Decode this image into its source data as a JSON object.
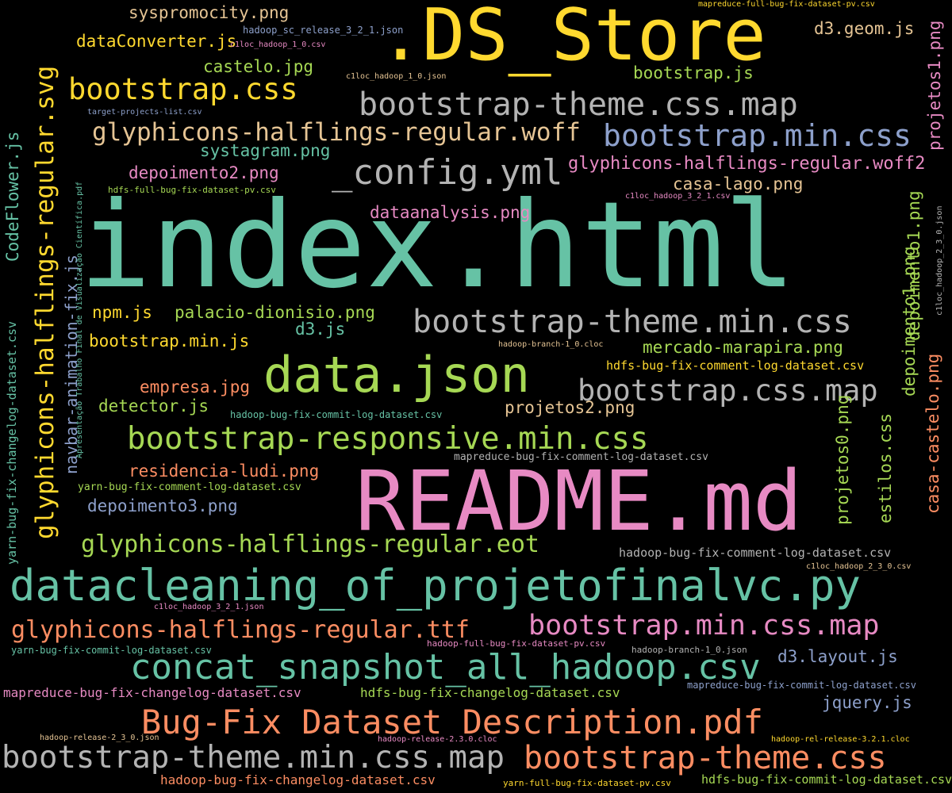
{
  "colors": {
    "background": "#000000",
    "teal": "#66c2a5",
    "orange": "#fc8d62",
    "blue": "#8da0cb",
    "pink": "#e78ac3",
    "lime": "#a6d854",
    "yellow": "#ffd92f",
    "tan": "#e5c494",
    "gray": "#b3b3b3"
  },
  "words": [
    {
      "text": "index.html",
      "color": "#66c2a5"
    },
    {
      "text": "README.md",
      "color": "#e78ac3"
    },
    {
      "text": ".DS_Store",
      "color": "#ffd92f"
    },
    {
      "text": "data.json",
      "color": "#a6d854"
    },
    {
      "text": "datacleaning_of_projetofinalvc.py",
      "color": "#66c2a5"
    },
    {
      "text": "bootstrap-theme.min.css",
      "color": "#b3b3b3"
    },
    {
      "text": "bootstrap-theme.css.map",
      "color": "#b3b3b3"
    },
    {
      "text": "bootstrap.css",
      "color": "#ffd92f"
    },
    {
      "text": "_config.yml",
      "color": "#b3b3b3"
    },
    {
      "text": "bootstrap.min.css",
      "color": "#8da0cb"
    },
    {
      "text": "glyphicons-halflings-regular.woff",
      "color": "#e5c494"
    },
    {
      "text": "bootstrap.css.map",
      "color": "#b3b3b3"
    },
    {
      "text": "bootstrap-responsive.min.css",
      "color": "#a6d854"
    },
    {
      "text": "concat_snapshot_all_hadoop.csv",
      "color": "#66c2a5"
    },
    {
      "text": "Bug-Fix Dataset Description.pdf",
      "color": "#fc8d62"
    },
    {
      "text": "bootstrap-theme.min.css.map",
      "color": "#b3b3b3"
    },
    {
      "text": "bootstrap-theme.css",
      "color": "#fc8d62"
    },
    {
      "text": "bootstrap.min.css.map",
      "color": "#e78ac3"
    },
    {
      "text": "glyphicons-halflings-regular.ttf",
      "color": "#fc8d62"
    },
    {
      "text": "glyphicons-halflings-regular.eot",
      "color": "#a6d854"
    },
    {
      "text": "glyphicons-halflings-regular.woff2",
      "color": "#e78ac3"
    },
    {
      "text": "syspromocity.png",
      "color": "#e5c494"
    },
    {
      "text": "dataConverter.js",
      "color": "#ffd92f"
    },
    {
      "text": "castelo.jpg",
      "color": "#a6d854"
    },
    {
      "text": "systagram.png",
      "color": "#66c2a5"
    },
    {
      "text": "depoimento2.png",
      "color": "#e78ac3"
    },
    {
      "text": "d3.geom.js",
      "color": "#e5c494"
    },
    {
      "text": "bootstrap.js",
      "color": "#a6d854"
    },
    {
      "text": "casa-lago.png",
      "color": "#e5c494"
    },
    {
      "text": "dataanalysis.png",
      "color": "#e78ac3"
    },
    {
      "text": "npm.js",
      "color": "#ffd92f"
    },
    {
      "text": "palacio-dionisio.png",
      "color": "#a6d854"
    },
    {
      "text": "d3.js",
      "color": "#66c2a5"
    },
    {
      "text": "bootstrap.min.js",
      "color": "#ffd92f"
    },
    {
      "text": "mercado-marapira.png",
      "color": "#a6d854"
    },
    {
      "text": "empresa.jpg",
      "color": "#fc8d62"
    },
    {
      "text": "detector.js",
      "color": "#a6d854"
    },
    {
      "text": "projetos2.png",
      "color": "#e5c494"
    },
    {
      "text": "residencia-ludi.png",
      "color": "#fc8d62"
    },
    {
      "text": "depoimento3.png",
      "color": "#8da0cb"
    },
    {
      "text": "d3.layout.js",
      "color": "#8da0cb"
    },
    {
      "text": "jquery.js",
      "color": "#8da0cb"
    },
    {
      "text": "hdfs-bug-fix-comment-log-dataset.csv",
      "color": "#ffd92f"
    },
    {
      "text": "hadoop-bug-fix-comment-log-dataset.csv",
      "color": "#b3b3b3"
    },
    {
      "text": "mapreduce-bug-fix-changelog-dataset.csv",
      "color": "#e78ac3"
    },
    {
      "text": "hdfs-bug-fix-changelog-dataset.csv",
      "color": "#a6d854"
    },
    {
      "text": "hadoop-bug-fix-changelog-dataset.csv",
      "color": "#fc8d62"
    },
    {
      "text": "hdfs-bug-fix-commit-log-dataset.csv",
      "color": "#a6d854"
    },
    {
      "text": "yarn-bug-fix-comment-log-dataset.csv",
      "color": "#a6d854"
    },
    {
      "text": "mapreduce-bug-fix-comment-log-dataset.csv",
      "color": "#b3b3b3"
    },
    {
      "text": "hadoop-bug-fix-commit-log-dataset.csv",
      "color": "#66c2a5"
    },
    {
      "text": "yarn-bug-fix-commit-log-dataset.csv",
      "color": "#66c2a5"
    },
    {
      "text": "mapreduce-bug-fix-commit-log-dataset.csv",
      "color": "#8da0cb"
    },
    {
      "text": "hadoop-full-bug-fix-dataset-pv.csv",
      "color": "#e78ac3"
    },
    {
      "text": "yarn-full-bug-fix-dataset-pv.csv",
      "color": "#ffd92f"
    },
    {
      "text": "hdfs-full-bug-fix-dataset-pv.csv",
      "color": "#a6d854"
    },
    {
      "text": "mapreduce-full-bug-fix-dataset-pv.csv",
      "color": "#ffd92f"
    },
    {
      "text": "hadoop_sc_release_3_2_1.json",
      "color": "#8da0cb"
    },
    {
      "text": "c1loc_hadoop_1_0.csv",
      "color": "#e78ac3"
    },
    {
      "text": "c1loc_hadoop_1_0.json",
      "color": "#e5c494"
    },
    {
      "text": "target-projects-list.csv",
      "color": "#8da0cb"
    },
    {
      "text": "c1loc_hadoop_3_2_1.csv",
      "color": "#e78ac3"
    },
    {
      "text": "hadoop-branch-1_0.cloc",
      "color": "#e5c494"
    },
    {
      "text": "c1loc_hadoop_2_3_0.csv",
      "color": "#e5c494"
    },
    {
      "text": "c1loc_hadoop_3_2_1.json",
      "color": "#e78ac3"
    },
    {
      "text": "hadoop-branch-1_0.json",
      "color": "#b3b3b3"
    },
    {
      "text": "hadoop-release-2_3_0.json",
      "color": "#e5c494"
    },
    {
      "text": "hadoop-release-2.3.0.cloc",
      "color": "#e78ac3"
    },
    {
      "text": "hadoop-rel-release-3.2.1.cloc",
      "color": "#ffd92f"
    },
    {
      "text": "glyphicons-halflings-regular.svg",
      "color": "#ffd92f"
    },
    {
      "text": "navbar-animation-fix.js",
      "color": "#8da0cb"
    },
    {
      "text": "CodeFlower.js",
      "color": "#66c2a5"
    },
    {
      "text": "yarn-bug-fix-changelog-dataset.csv",
      "color": "#66c2a5"
    },
    {
      "text": "Apresentação Trabalho Final de Visualização Científica.pdf",
      "color": "#66c2a5"
    },
    {
      "text": "hdfs-full-bug-fix-dataset-pv.csv",
      "color": "#a6d854"
    },
    {
      "text": "projetos1.png",
      "color": "#e78ac3"
    },
    {
      "text": "depoimento1.png",
      "color": "#a6d854"
    },
    {
      "text": "c1loc_hadoop_2_3_0.json",
      "color": "#b3b3b3"
    },
    {
      "text": "depoimento1.png",
      "color": "#a6d854"
    },
    {
      "text": "casa-castelo.png",
      "color": "#fc8d62"
    },
    {
      "text": "estilos.css",
      "color": "#a6d854"
    },
    {
      "text": "projetos0.png",
      "color": "#a6d854"
    }
  ]
}
